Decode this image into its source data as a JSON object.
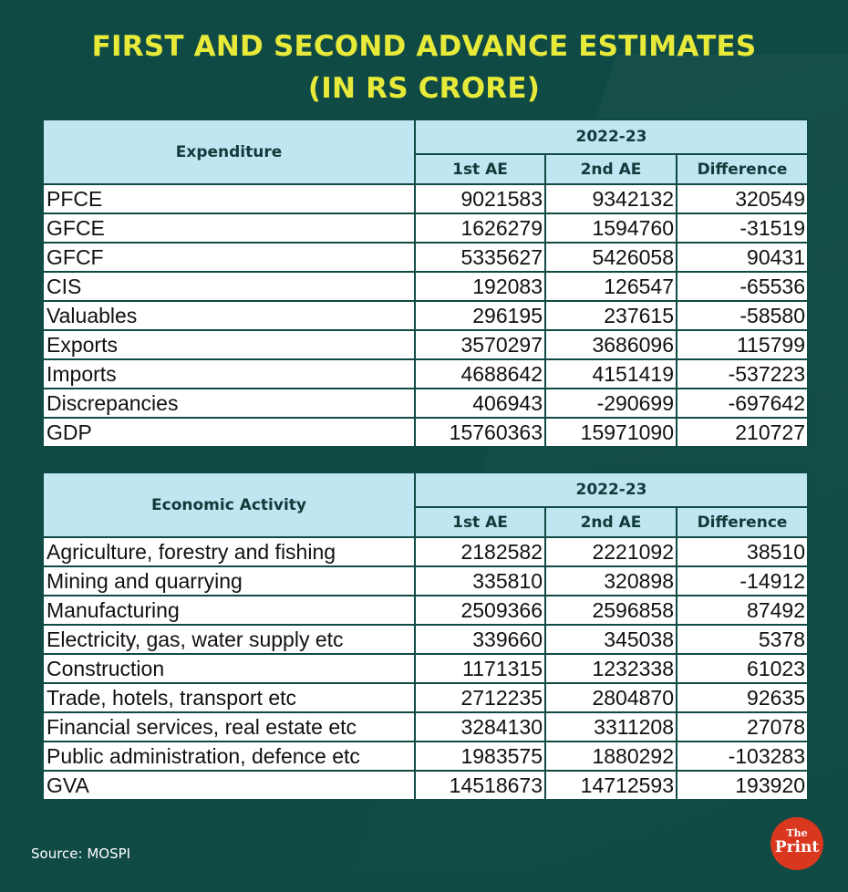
{
  "title_line1": "FIRST AND SECOND ADVANCE ESTIMATES",
  "title_line2": "(IN RS CRORE)",
  "colors": {
    "background": "#0f4a44",
    "title": "#e8ea3a",
    "header": "#bfe6f1",
    "logo": "#d9381e"
  },
  "chart_data": [
    {
      "type": "table",
      "title": "Expenditure",
      "period": "2022-23",
      "columns": [
        "1st AE",
        "2nd AE",
        "Difference"
      ],
      "rows": [
        {
          "label": "PFCE",
          "values": [
            "9021583",
            "9342132",
            "320549"
          ]
        },
        {
          "label": "GFCE",
          "values": [
            "1626279",
            "1594760",
            "-31519"
          ]
        },
        {
          "label": "GFCF",
          "values": [
            "5335627",
            "5426058",
            "90431"
          ]
        },
        {
          "label": "CIS",
          "values": [
            "192083",
            "126547",
            "-65536"
          ]
        },
        {
          "label": "Valuables",
          "values": [
            "296195",
            "237615",
            "-58580"
          ]
        },
        {
          "label": "Exports",
          "values": [
            "3570297",
            "3686096",
            "115799"
          ]
        },
        {
          "label": "Imports",
          "values": [
            "4688642",
            "4151419",
            "-537223"
          ]
        },
        {
          "label": "Discrepancies",
          "values": [
            "406943",
            "-290699",
            "-697642"
          ]
        },
        {
          "label": "GDP",
          "values": [
            "15760363",
            "15971090",
            "210727"
          ]
        }
      ]
    },
    {
      "type": "table",
      "title": "Economic Activity",
      "period": "2022-23",
      "columns": [
        "1st AE",
        "2nd AE",
        "Difference"
      ],
      "rows": [
        {
          "label": "Agriculture, forestry and fishing",
          "values": [
            "2182582",
            "2221092",
            "38510"
          ]
        },
        {
          "label": "Mining and quarrying",
          "values": [
            "335810",
            "320898",
            "-14912"
          ]
        },
        {
          "label": "Manufacturing",
          "values": [
            "2509366",
            "2596858",
            "87492"
          ]
        },
        {
          "label": "Electricity, gas, water supply etc",
          "values": [
            "339660",
            "345038",
            "5378"
          ]
        },
        {
          "label": "Construction",
          "values": [
            "1171315",
            "1232338",
            "61023"
          ]
        },
        {
          "label": "Trade, hotels, transport etc",
          "values": [
            "2712235",
            "2804870",
            "92635"
          ]
        },
        {
          "label": "Financial services, real estate etc",
          "values": [
            "3284130",
            "3311208",
            "27078"
          ]
        },
        {
          "label": "Public administration, defence etc",
          "values": [
            "1983575",
            "1880292",
            "-103283"
          ]
        },
        {
          "label": "GVA",
          "values": [
            "14518673",
            "14712593",
            "193920"
          ]
        }
      ]
    }
  ],
  "source": "Source: MOSPI",
  "logo": {
    "line1": "The",
    "line2": "Print"
  }
}
